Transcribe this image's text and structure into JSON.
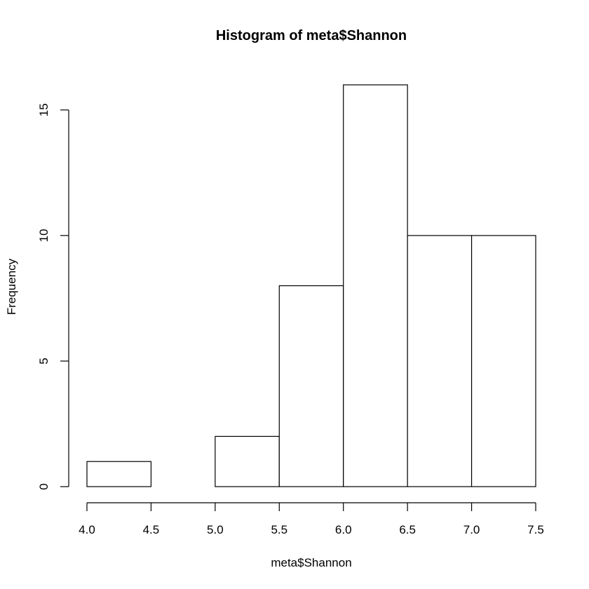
{
  "chart_data": {
    "type": "bar",
    "subtype": "histogram",
    "title": "Histogram of meta$Shannon",
    "xlabel": "meta$Shannon",
    "ylabel": "Frequency",
    "bin_edges": [
      4.0,
      4.5,
      5.0,
      5.5,
      6.0,
      6.5,
      7.0,
      7.5
    ],
    "values": [
      1,
      0,
      2,
      8,
      16,
      10,
      10
    ],
    "xlim": [
      4.0,
      7.5
    ],
    "ylim": [
      0,
      16
    ],
    "x_ticks": [
      4.0,
      4.5,
      5.0,
      5.5,
      6.0,
      6.5,
      7.0,
      7.5
    ],
    "x_tick_labels": [
      "4.0",
      "4.5",
      "5.0",
      "5.5",
      "6.0",
      "6.5",
      "7.0",
      "7.5"
    ],
    "y_ticks": [
      0,
      5,
      10,
      15
    ],
    "y_tick_labels": [
      "0",
      "5",
      "10",
      "15"
    ],
    "grid": false,
    "bar_fill": "#ffffff",
    "bar_stroke": "#000000"
  }
}
